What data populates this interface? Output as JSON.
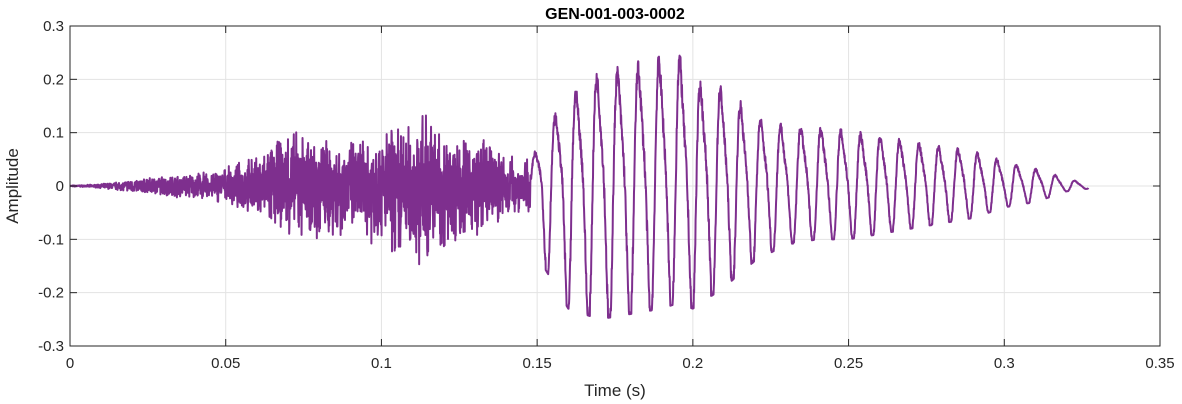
{
  "chart_data": {
    "type": "line",
    "title": "GEN-001-003-0002",
    "xlabel": "Time (s)",
    "ylabel": "Amplitude",
    "xlim": [
      0,
      0.35
    ],
    "ylim": [
      -0.3,
      0.3
    ],
    "xticks": [
      0,
      0.05,
      0.1,
      0.15,
      0.2,
      0.25,
      0.3,
      0.35
    ],
    "xtick_labels": [
      "0",
      "0.05",
      "0.1",
      "0.15",
      "0.2",
      "0.25",
      "0.3",
      "0.35"
    ],
    "yticks": [
      -0.3,
      -0.2,
      -0.1,
      0,
      0.1,
      0.2,
      0.3
    ],
    "ytick_labels": [
      "-0.3",
      "-0.2",
      "-0.1",
      "0",
      "0.1",
      "0.2",
      "0.3"
    ],
    "grid": true,
    "line_color": "#7e2f8e",
    "series": [
      {
        "name": "",
        "envelope": {
          "time_s": [
            0,
            0.005,
            0.01,
            0.015,
            0.02,
            0.03,
            0.04,
            0.05,
            0.06,
            0.07,
            0.08,
            0.09,
            0.1,
            0.11,
            0.115,
            0.12,
            0.13,
            0.14,
            0.148,
            0.152,
            0.16,
            0.17,
            0.18,
            0.19,
            0.195,
            0.2,
            0.21,
            0.22,
            0.23,
            0.24,
            0.25,
            0.26,
            0.27,
            0.28,
            0.29,
            0.3,
            0.31,
            0.32,
            0.327
          ],
          "max_amplitude": [
            0.001,
            0.002,
            0.004,
            0.008,
            0.012,
            0.02,
            0.025,
            0.035,
            0.06,
            0.11,
            0.1,
            0.09,
            0.11,
            0.13,
            0.15,
            0.1,
            0.1,
            0.07,
            0.05,
            0.11,
            0.18,
            0.23,
            0.24,
            0.26,
            0.275,
            0.21,
            0.2,
            0.14,
            0.12,
            0.12,
            0.11,
            0.1,
            0.09,
            0.08,
            0.07,
            0.05,
            0.035,
            0.015,
            0.005
          ],
          "min_amplitude": [
            -0.001,
            -0.002,
            -0.004,
            -0.008,
            -0.012,
            -0.02,
            -0.025,
            -0.035,
            -0.06,
            -0.1,
            -0.11,
            -0.1,
            -0.12,
            -0.15,
            -0.17,
            -0.13,
            -0.1,
            -0.07,
            -0.05,
            -0.15,
            -0.23,
            -0.25,
            -0.24,
            -0.23,
            -0.22,
            -0.23,
            -0.19,
            -0.14,
            -0.11,
            -0.1,
            -0.1,
            -0.09,
            -0.08,
            -0.07,
            -0.06,
            -0.04,
            -0.03,
            -0.01,
            -0.005
          ]
        }
      }
    ]
  }
}
